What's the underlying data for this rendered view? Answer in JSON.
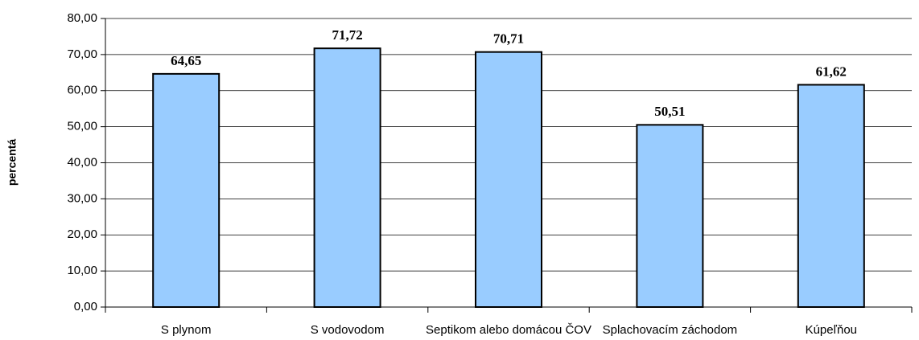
{
  "chart_data": {
    "type": "bar",
    "y_label": "percentá",
    "categories": [
      "S plynom",
      "S vodovodom",
      "Septikom alebo domácou ČOV",
      "Splachovacím záchodom",
      "Kúpeľňou"
    ],
    "values": [
      64.65,
      71.72,
      70.71,
      50.51,
      61.62
    ],
    "value_labels": [
      "64,65",
      "71,72",
      "70,71",
      "50,51",
      "61,62"
    ],
    "color": "#99ccff",
    "ylim": [
      0,
      80
    ],
    "yticks": [
      {
        "value": 0,
        "label": "0,00"
      },
      {
        "value": 10,
        "label": "10,00"
      },
      {
        "value": 20,
        "label": "20,00"
      },
      {
        "value": 30,
        "label": "30,00"
      },
      {
        "value": 40,
        "label": "40,00"
      },
      {
        "value": 50,
        "label": "50,00"
      },
      {
        "value": 60,
        "label": "60,00"
      },
      {
        "value": 70,
        "label": "70,00"
      },
      {
        "value": 80,
        "label": "80,00"
      }
    ],
    "grid": true
  }
}
